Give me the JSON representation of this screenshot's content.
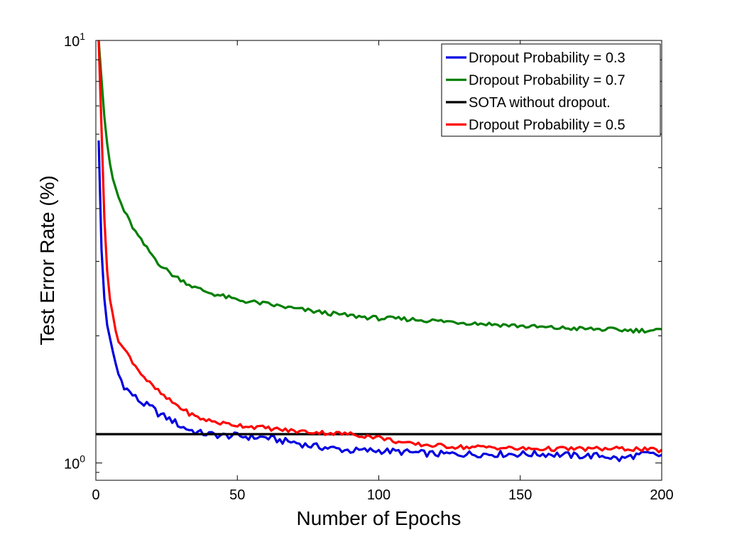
{
  "chart_data": {
    "type": "line",
    "xlabel": "Number of Epochs",
    "ylabel": "Test Error Rate (%)",
    "xlim": [
      0,
      200
    ],
    "ylim": [
      0.91,
      10
    ],
    "yscale": "log",
    "grid": false,
    "legend_position": "top-right",
    "x_ticks": [
      {
        "value": 0,
        "label": "0"
      },
      {
        "value": 50,
        "label": "50"
      },
      {
        "value": 100,
        "label": "100"
      },
      {
        "value": 150,
        "label": "150"
      },
      {
        "value": 200,
        "label": "200"
      }
    ],
    "y_ticks": [
      {
        "value": 1,
        "base": "10",
        "exp": "0"
      },
      {
        "value": 10,
        "base": "10",
        "exp": "1"
      }
    ],
    "series": [
      {
        "name": "Dropout Probability = 0.3",
        "color": "#0000e0",
        "points": [
          [
            1,
            5.8
          ],
          [
            2,
            3.2
          ],
          [
            3,
            2.45
          ],
          [
            4,
            2.12
          ],
          [
            5,
            1.95
          ],
          [
            6,
            1.82
          ],
          [
            7,
            1.72
          ],
          [
            8,
            1.62
          ],
          [
            9,
            1.57
          ],
          [
            10,
            1.52
          ],
          [
            12,
            1.47
          ],
          [
            14,
            1.43
          ],
          [
            16,
            1.39
          ],
          [
            18,
            1.37
          ],
          [
            20,
            1.35
          ],
          [
            22,
            1.31
          ],
          [
            25,
            1.28
          ],
          [
            28,
            1.25
          ],
          [
            30,
            1.22
          ],
          [
            33,
            1.2
          ],
          [
            36,
            1.18
          ],
          [
            40,
            1.17
          ],
          [
            45,
            1.16
          ],
          [
            50,
            1.16
          ],
          [
            55,
            1.15
          ],
          [
            60,
            1.15
          ],
          [
            65,
            1.13
          ],
          [
            70,
            1.12
          ],
          [
            75,
            1.1
          ],
          [
            80,
            1.09
          ],
          [
            85,
            1.08
          ],
          [
            90,
            1.07
          ],
          [
            95,
            1.07
          ],
          [
            100,
            1.07
          ],
          [
            110,
            1.06
          ],
          [
            120,
            1.05
          ],
          [
            130,
            1.05
          ],
          [
            140,
            1.05
          ],
          [
            150,
            1.05
          ],
          [
            160,
            1.05
          ],
          [
            170,
            1.04
          ],
          [
            180,
            1.04
          ],
          [
            185,
            1.02
          ],
          [
            190,
            1.04
          ],
          [
            195,
            1.05
          ],
          [
            200,
            1.04
          ]
        ]
      },
      {
        "name": "Dropout Probability = 0.7",
        "color": "#007f00",
        "points": [
          [
            1,
            10
          ],
          [
            2,
            8.1
          ],
          [
            3,
            6.6
          ],
          [
            4,
            5.7
          ],
          [
            5,
            5.1
          ],
          [
            6,
            4.7
          ],
          [
            8,
            4.25
          ],
          [
            10,
            3.95
          ],
          [
            12,
            3.72
          ],
          [
            14,
            3.52
          ],
          [
            16,
            3.36
          ],
          [
            18,
            3.22
          ],
          [
            20,
            3.1
          ],
          [
            22,
            2.98
          ],
          [
            25,
            2.86
          ],
          [
            28,
            2.76
          ],
          [
            30,
            2.72
          ],
          [
            35,
            2.6
          ],
          [
            40,
            2.53
          ],
          [
            45,
            2.48
          ],
          [
            50,
            2.43
          ],
          [
            60,
            2.38
          ],
          [
            70,
            2.32
          ],
          [
            80,
            2.27
          ],
          [
            90,
            2.23
          ],
          [
            100,
            2.2
          ],
          [
            110,
            2.19
          ],
          [
            120,
            2.17
          ],
          [
            130,
            2.15
          ],
          [
            140,
            2.13
          ],
          [
            150,
            2.11
          ],
          [
            160,
            2.09
          ],
          [
            170,
            2.08
          ],
          [
            180,
            2.07
          ],
          [
            190,
            2.06
          ],
          [
            200,
            2.06
          ]
        ]
      },
      {
        "name": "SOTA without dropout.",
        "color": "#000000",
        "points": [
          [
            0,
            1.17
          ],
          [
            200,
            1.17
          ]
        ]
      },
      {
        "name": "Dropout Probability = 0.5",
        "color": "#ff0000",
        "points": [
          [
            1,
            10
          ],
          [
            2,
            6.2
          ],
          [
            3,
            3.8
          ],
          [
            4,
            2.85
          ],
          [
            5,
            2.45
          ],
          [
            6,
            2.22
          ],
          [
            7,
            2.06
          ],
          [
            8,
            1.96
          ],
          [
            9,
            1.9
          ],
          [
            10,
            1.86
          ],
          [
            12,
            1.78
          ],
          [
            14,
            1.7
          ],
          [
            16,
            1.63
          ],
          [
            18,
            1.57
          ],
          [
            20,
            1.52
          ],
          [
            22,
            1.48
          ],
          [
            25,
            1.42
          ],
          [
            28,
            1.38
          ],
          [
            30,
            1.35
          ],
          [
            33,
            1.31
          ],
          [
            36,
            1.28
          ],
          [
            40,
            1.26
          ],
          [
            45,
            1.24
          ],
          [
            50,
            1.23
          ],
          [
            60,
            1.21
          ],
          [
            70,
            1.19
          ],
          [
            80,
            1.18
          ],
          [
            90,
            1.17
          ],
          [
            100,
            1.15
          ],
          [
            110,
            1.11
          ],
          [
            120,
            1.1
          ],
          [
            130,
            1.09
          ],
          [
            140,
            1.09
          ],
          [
            150,
            1.08
          ],
          [
            160,
            1.08
          ],
          [
            170,
            1.08
          ],
          [
            180,
            1.08
          ],
          [
            190,
            1.08
          ],
          [
            200,
            1.07
          ]
        ]
      }
    ]
  }
}
